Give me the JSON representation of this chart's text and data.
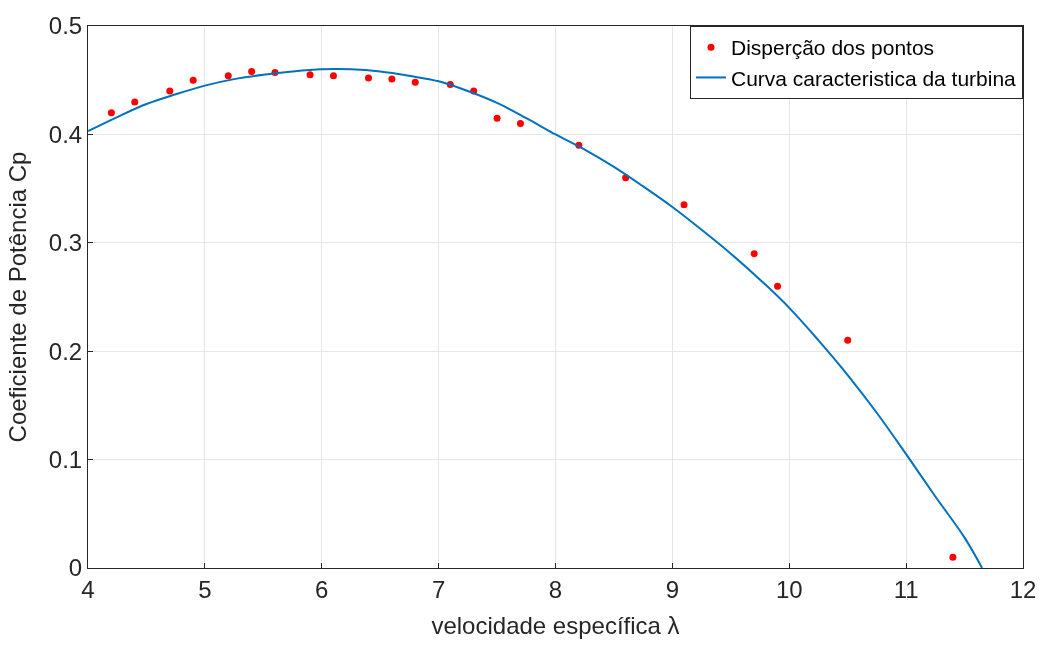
{
  "chart_data": {
    "type": "scatter",
    "xlabel": "velocidade específica λ",
    "ylabel": "Coeficiente de Potência Cp",
    "xlim": [
      4,
      12
    ],
    "xticks": [
      4,
      5,
      6,
      7,
      8,
      9,
      10,
      11,
      12
    ],
    "ylim": [
      0,
      0.5
    ],
    "yticks": [
      0,
      0.1,
      0.2,
      0.3,
      0.4,
      0.5
    ],
    "grid": true,
    "legend": "top right",
    "series": [
      {
        "name": "Disperção dos pontos",
        "color": "#ff0000",
        "marker": "circle",
        "x": [
          4.2,
          4.4,
          4.7,
          4.9,
          5.2,
          5.4,
          5.6,
          5.9,
          6.1,
          6.4,
          6.6,
          6.8,
          7.1,
          7.3,
          7.5,
          7.7,
          8.2,
          8.6,
          9.1,
          9.7,
          9.9,
          10.5,
          11.4
        ],
        "values": [
          0.42,
          0.43,
          0.44,
          0.45,
          0.454,
          0.458,
          0.457,
          0.455,
          0.454,
          0.452,
          0.451,
          0.448,
          0.446,
          0.44,
          0.415,
          0.41,
          0.39,
          0.36,
          0.335,
          0.29,
          0.26,
          0.21,
          0.01
        ]
      },
      {
        "name": "Curva caracteristica da turbina",
        "color": "#0072bd",
        "type": "line",
        "marker": "none",
        "x": [
          4,
          4.25,
          4.5,
          4.75,
          5,
          5.25,
          5.5,
          5.75,
          6,
          6.25,
          6.5,
          6.75,
          7,
          7.25,
          7.5,
          7.75,
          8,
          8.25,
          8.5,
          8.75,
          9,
          9.25,
          9.5,
          9.75,
          10,
          10.25,
          10.5,
          10.75,
          11,
          11.25,
          11.5,
          11.65
        ],
        "values": [
          0.403,
          0.416,
          0.428,
          0.437,
          0.445,
          0.451,
          0.455,
          0.458,
          0.46,
          0.46,
          0.458,
          0.454,
          0.449,
          0.44,
          0.429,
          0.415,
          0.4,
          0.386,
          0.37,
          0.352,
          0.333,
          0.312,
          0.29,
          0.266,
          0.24,
          0.21,
          0.178,
          0.143,
          0.105,
          0.066,
          0.028,
          0
        ]
      }
    ]
  }
}
